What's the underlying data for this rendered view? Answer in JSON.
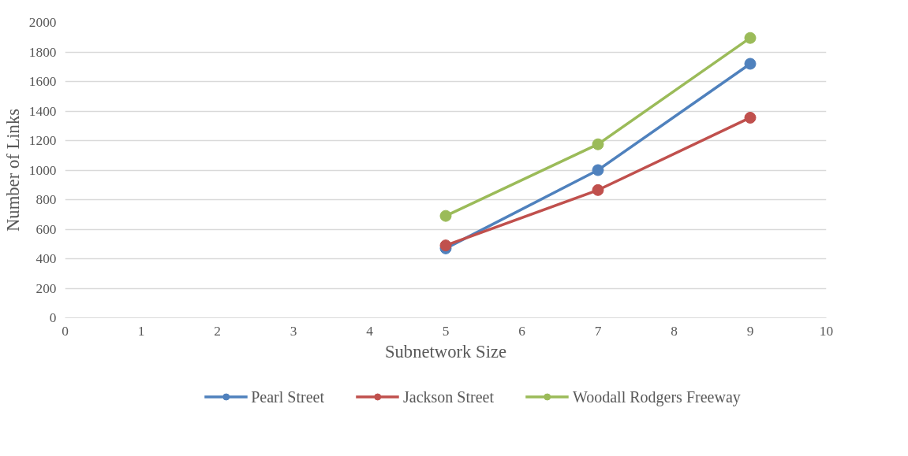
{
  "chart_data": {
    "type": "line",
    "xlabel": "Subnetwork Size",
    "ylabel": "Number of Links",
    "x": [
      5,
      7,
      9
    ],
    "series": [
      {
        "name": "Pearl Street",
        "color": "#4f81bd",
        "values": [
          470,
          1000,
          1720
        ]
      },
      {
        "name": "Jackson Street",
        "color": "#c0504d",
        "values": [
          490,
          865,
          1355
        ]
      },
      {
        "name": "Woodall Rodgers Freeway",
        "color": "#9bbb59",
        "values": [
          690,
          1175,
          1895
        ]
      }
    ],
    "xlim": [
      0,
      10
    ],
    "xticks": [
      0,
      1,
      2,
      3,
      4,
      5,
      6,
      7,
      8,
      9,
      10
    ],
    "ylim": [
      0,
      2000
    ],
    "yticks": [
      0,
      200,
      400,
      600,
      800,
      1000,
      1200,
      1400,
      1600,
      1800,
      2000
    ],
    "grid": "y",
    "legend": "bottom",
    "marker": "circle",
    "line_style": "solid"
  }
}
